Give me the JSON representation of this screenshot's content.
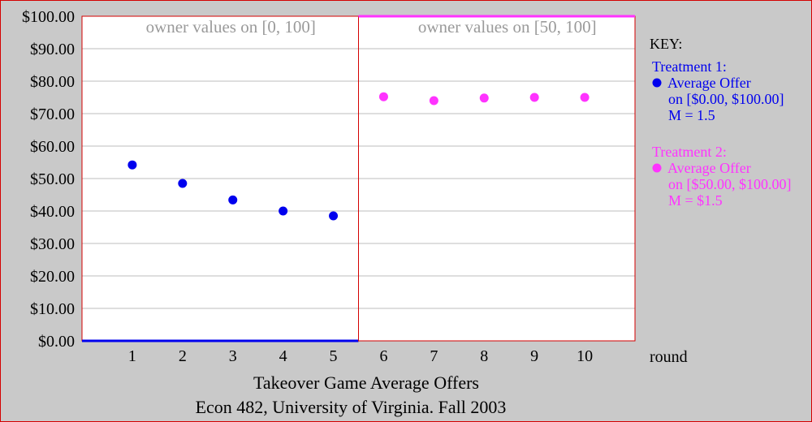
{
  "chart_data": {
    "type": "scatter",
    "caption": [
      "Takeover Game Average Offers",
      "Econ 482, University of Virginia. Fall 2003"
    ],
    "xlabel": "round",
    "x_ticks": [
      "1",
      "2",
      "3",
      "4",
      "5",
      "6",
      "7",
      "8",
      "9",
      "10"
    ],
    "y_ticks": [
      "$0.00",
      "$10.00",
      "$20.00",
      "$30.00",
      "$40.00",
      "$50.00",
      "$60.00",
      "$70.00",
      "$80.00",
      "$90.00",
      "$100.00"
    ],
    "ylim": [
      0,
      100
    ],
    "xlim": [
      0,
      11
    ],
    "panels": [
      {
        "title": "owner values on [0, 100]",
        "x_range": [
          0,
          5.5
        ]
      },
      {
        "title": "owner values on [50, 100]",
        "x_range": [
          5.5,
          11
        ]
      }
    ],
    "legend_placement": "right",
    "series": [
      {
        "name": "Treatment 1",
        "color": "#0000ee",
        "x": [
          1,
          2,
          3,
          4,
          5
        ],
        "y": [
          54.2,
          48.5,
          43.4,
          40.0,
          38.5
        ],
        "legend": [
          "Treatment 1:",
          "Average Offer",
          "on [$0.00, $100.00]",
          "M = 1.5"
        ]
      },
      {
        "name": "Treatment 2",
        "color": "#ff33ff",
        "x": [
          6,
          7,
          8,
          9,
          10
        ],
        "y": [
          75.2,
          74.0,
          74.8,
          75.0,
          75.0
        ],
        "legend": [
          "Treatment 2:",
          "Average Offer",
          "on [$50.00, $100.00]",
          "M = $1.5"
        ]
      }
    ],
    "key_title": "KEY:"
  }
}
